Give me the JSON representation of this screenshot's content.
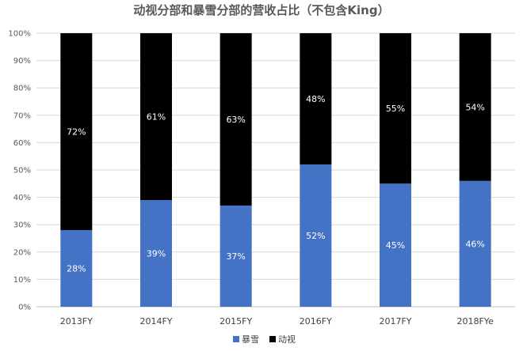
{
  "chart_data": {
    "type": "bar",
    "stacked": true,
    "percent_stacked": true,
    "title": "动视分部和暴雪分部的营收占比（不包含King）",
    "categories": [
      "2013FY",
      "2014FY",
      "2015FY",
      "2016FY",
      "2017FY",
      "2018FYe"
    ],
    "series": [
      {
        "name": "暴雪",
        "values": [
          28,
          39,
          37,
          52,
          45,
          46
        ],
        "labels": [
          "28%",
          "39%",
          "37%",
          "52%",
          "45%",
          "46%"
        ],
        "color": "#4472C4"
      },
      {
        "name": "动视",
        "values": [
          72,
          61,
          63,
          48,
          55,
          54
        ],
        "labels": [
          "72%",
          "61%",
          "63%",
          "48%",
          "55%",
          "54%"
        ],
        "color": "#000000"
      }
    ],
    "ylim": [
      0,
      100
    ],
    "yticks": [
      "0%",
      "10%",
      "20%",
      "30%",
      "40%",
      "50%",
      "60%",
      "70%",
      "80%",
      "90%",
      "100%"
    ],
    "grid": true,
    "legend_position": "bottom"
  }
}
